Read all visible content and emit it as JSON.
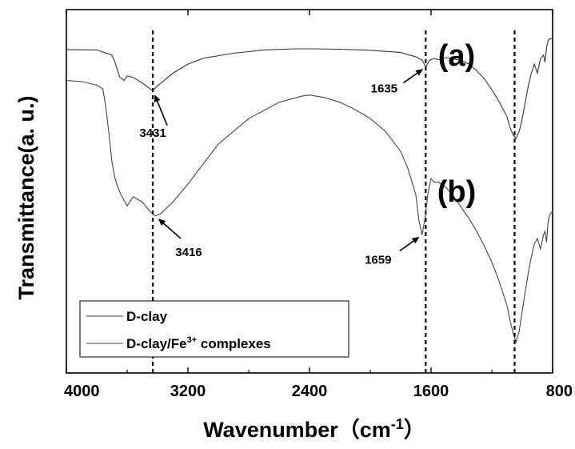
{
  "chart_data": {
    "type": "line",
    "xlabel": "Wavenumber（cm",
    "xlabel_sup": "-1",
    "xlabel_close": "）",
    "ylabel": "Transmittance(a. u.)",
    "xlim": [
      4000,
      800
    ],
    "x_ticks": [
      "4000",
      "3200",
      "2400",
      "1600",
      "800"
    ],
    "y_ticks": [],
    "grid": false,
    "legend_position": "bottom-left",
    "panel_labels": [
      {
        "text": "(a)",
        "x": 1400
      },
      {
        "text": "(b)",
        "x": 1400
      }
    ],
    "reference_lines": [
      3431,
      1635,
      1050
    ],
    "series": [
      {
        "name": "D-clay",
        "color": "#333333",
        "x": [
          4000,
          3800,
          3700,
          3680,
          3650,
          3620,
          3600,
          3560,
          3500,
          3450,
          3431,
          3400,
          3300,
          3200,
          3100,
          2900,
          2700,
          2500,
          2400,
          2200,
          2000,
          1800,
          1700,
          1660,
          1635,
          1610,
          1580,
          1550,
          1500,
          1450,
          1400,
          1350,
          1300,
          1250,
          1200,
          1150,
          1100,
          1080,
          1060,
          1040,
          1020,
          1000,
          980,
          960,
          940,
          920,
          900,
          880,
          860,
          850,
          840,
          830,
          820,
          800
        ],
        "y": [
          5.2,
          5.19,
          5.05,
          4.85,
          4.45,
          4.35,
          4.48,
          4.43,
          4.28,
          4.12,
          4.08,
          4.2,
          4.55,
          4.8,
          4.96,
          5.1,
          5.19,
          5.22,
          5.22,
          5.21,
          5.18,
          5.12,
          5.0,
          4.92,
          4.72,
          4.9,
          4.96,
          4.92,
          4.98,
          4.94,
          4.9,
          4.8,
          4.62,
          4.4,
          4.1,
          3.75,
          3.35,
          3.05,
          2.85,
          2.75,
          2.95,
          3.3,
          3.75,
          4.2,
          4.55,
          4.8,
          4.55,
          4.95,
          5.05,
          4.85,
          5.25,
          5.45,
          5.5,
          5.5
        ]
      },
      {
        "name": "D-clay/Fe3+ complexes",
        "color": "#444444",
        "x": [
          4000,
          3900,
          3800,
          3760,
          3740,
          3720,
          3700,
          3680,
          3660,
          3640,
          3620,
          3600,
          3560,
          3500,
          3450,
          3416,
          3380,
          3300,
          3200,
          3100,
          3000,
          2800,
          2600,
          2450,
          2400,
          2300,
          2200,
          2100,
          2000,
          1900,
          1800,
          1750,
          1700,
          1680,
          1659,
          1640,
          1620,
          1600,
          1580,
          1550,
          1500,
          1450,
          1400,
          1350,
          1300,
          1250,
          1200,
          1150,
          1100,
          1080,
          1060,
          1040,
          1020,
          1000,
          980,
          960,
          940,
          920,
          900,
          880,
          860,
          850,
          840,
          830,
          820,
          800
        ],
        "y": [
          4.35,
          4.32,
          4.22,
          4.12,
          3.6,
          2.9,
          2.1,
          1.65,
          1.4,
          1.2,
          1.05,
          0.9,
          1.15,
          1.0,
          0.75,
          0.62,
          0.68,
          1.0,
          1.5,
          2.05,
          2.6,
          3.3,
          3.75,
          3.92,
          3.95,
          3.88,
          3.75,
          3.55,
          3.3,
          2.95,
          2.4,
          1.9,
          1.2,
          0.5,
          0.1,
          0.55,
          1.25,
          1.65,
          1.55,
          1.55,
          1.4,
          1.15,
          0.85,
          0.55,
          0.2,
          -0.2,
          -0.65,
          -1.2,
          -1.85,
          -2.25,
          -2.6,
          -2.85,
          -2.55,
          -2.0,
          -1.45,
          -0.95,
          -0.5,
          -0.15,
          0.0,
          -0.3,
          0.1,
          0.2,
          -0.1,
          0.45,
          0.65,
          0.75
        ]
      }
    ],
    "annotations": [
      {
        "text": "3431",
        "series": 0,
        "x": 3431
      },
      {
        "text": "1635",
        "series": 0,
        "x": 1635
      },
      {
        "text": "3416",
        "series": 1,
        "x": 3416
      },
      {
        "text": "1659",
        "series": 1,
        "x": 1659
      }
    ],
    "legend": [
      {
        "label": "D-clay",
        "label_sup": "",
        "label_after": "",
        "color": "#333333"
      },
      {
        "label": "D-clay/Fe",
        "label_sup": "3+",
        "label_after": " complexes",
        "color": "#444444"
      }
    ]
  }
}
